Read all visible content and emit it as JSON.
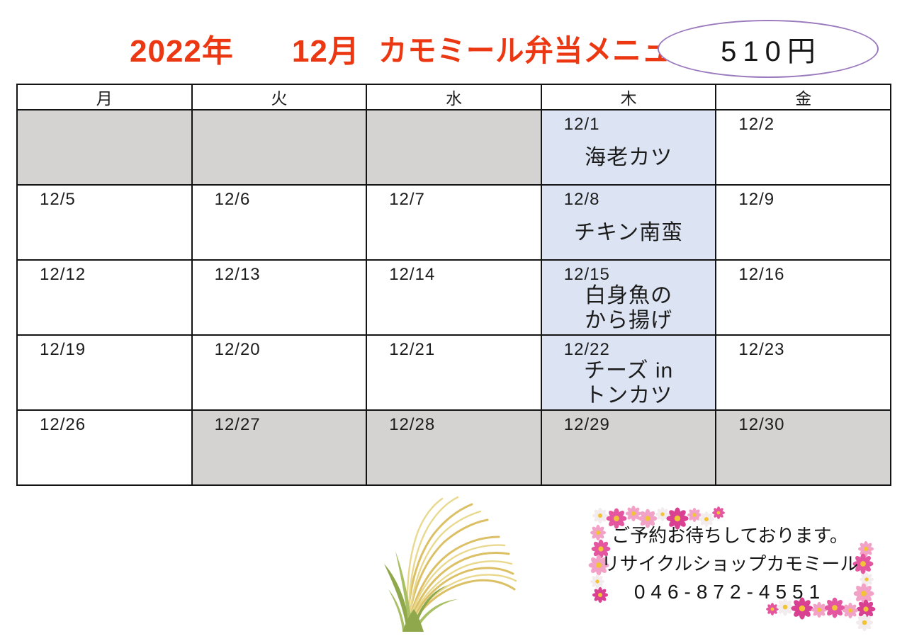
{
  "title": {
    "year": "2022年",
    "month": "12月",
    "text": "カモミール弁当メニュー"
  },
  "price_badge": {
    "label": "510円"
  },
  "colors": {
    "accent-red": "#ec3812",
    "text-black": "#1c1c1c",
    "border-black": "#141414",
    "cell-gray": "#d4d3d1",
    "cell-blue": "#dce3f2",
    "ellipse-purple": "#9a79bd",
    "flower-deeppink": "#e4569f",
    "flower-pink": "#f2a2c7",
    "flower-magenta": "#d94091",
    "flower-white": "#f3ecee",
    "flower-center-yellow": "#f1c335",
    "grass-gold": "#dcc066",
    "grass-gold-light": "#e9d98e",
    "grass-green": "#8fa84c",
    "grass-green-light": "#a9bf63"
  },
  "calendar": {
    "day_headers": [
      "月",
      "火",
      "水",
      "木",
      "金"
    ],
    "rows": [
      [
        {
          "date": "",
          "menu": "",
          "bg": "gray"
        },
        {
          "date": "",
          "menu": "",
          "bg": "gray"
        },
        {
          "date": "",
          "menu": "",
          "bg": "gray"
        },
        {
          "date": "12/1",
          "menu": "海老カツ",
          "bg": "blue"
        },
        {
          "date": "12/2",
          "menu": "",
          "bg": "white"
        }
      ],
      [
        {
          "date": "12/5",
          "menu": "",
          "bg": "white"
        },
        {
          "date": "12/6",
          "menu": "",
          "bg": "white"
        },
        {
          "date": "12/7",
          "menu": "",
          "bg": "white"
        },
        {
          "date": "12/8",
          "menu": "チキン南蛮",
          "bg": "blue"
        },
        {
          "date": "12/9",
          "menu": "",
          "bg": "white"
        }
      ],
      [
        {
          "date": "12/12",
          "menu": "",
          "bg": "white"
        },
        {
          "date": "12/13",
          "menu": "",
          "bg": "white"
        },
        {
          "date": "12/14",
          "menu": "",
          "bg": "white"
        },
        {
          "date": "12/15",
          "menu": "白身魚の\nから揚げ",
          "bg": "blue"
        },
        {
          "date": "12/16",
          "menu": "",
          "bg": "white"
        }
      ],
      [
        {
          "date": "12/19",
          "menu": "",
          "bg": "white"
        },
        {
          "date": "12/20",
          "menu": "",
          "bg": "white"
        },
        {
          "date": "12/21",
          "menu": "",
          "bg": "white"
        },
        {
          "date": "12/22",
          "menu": "チーズ in\nトンカツ",
          "bg": "blue"
        },
        {
          "date": "12/23",
          "menu": "",
          "bg": "white"
        }
      ],
      [
        {
          "date": "12/26",
          "menu": "",
          "bg": "white"
        },
        {
          "date": "12/27",
          "menu": "",
          "bg": "gray"
        },
        {
          "date": "12/28",
          "menu": "",
          "bg": "gray"
        },
        {
          "date": "12/29",
          "menu": "",
          "bg": "gray"
        },
        {
          "date": "12/30",
          "menu": "",
          "bg": "gray"
        }
      ]
    ]
  },
  "footer": {
    "message": "ご予約お待ちしております。",
    "shop_name": "リサイクルショップカモミール",
    "phone": "046-872-4551"
  }
}
